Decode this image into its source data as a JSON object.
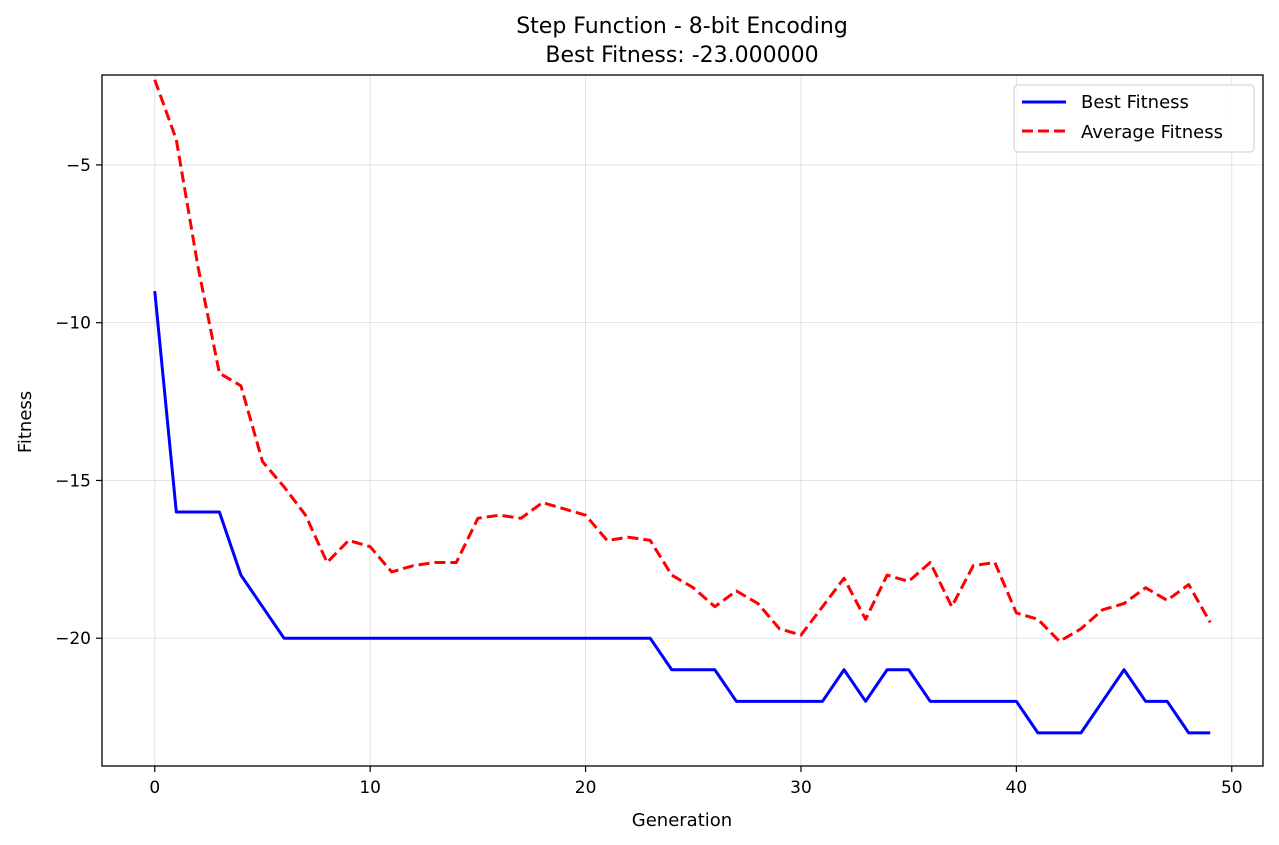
{
  "chart_data": {
    "type": "line",
    "title": "Step Function - 8-bit Encoding",
    "subtitle": "Best Fitness: -23.000000",
    "xlabel": "Generation",
    "ylabel": "Fitness",
    "xlim": [
      -2.45,
      51.45
    ],
    "ylim": [
      -24.05,
      -2.15
    ],
    "xticks": [
      0,
      10,
      20,
      30,
      40,
      50
    ],
    "yticks": [
      -5,
      -10,
      -15,
      -20
    ],
    "xtick_labels": [
      "0",
      "10",
      "20",
      "30",
      "40",
      "50"
    ],
    "ytick_labels": [
      "−5",
      "−10",
      "−15",
      "−20"
    ],
    "grid": true,
    "legend_position": "top-right",
    "x": [
      0,
      1,
      2,
      3,
      4,
      5,
      6,
      7,
      8,
      9,
      10,
      11,
      12,
      13,
      14,
      15,
      16,
      17,
      18,
      19,
      20,
      21,
      22,
      23,
      24,
      25,
      26,
      27,
      28,
      29,
      30,
      31,
      32,
      33,
      34,
      35,
      36,
      37,
      38,
      39,
      40,
      41,
      42,
      43,
      44,
      45,
      46,
      47,
      48,
      49
    ],
    "series": [
      {
        "name": "Best Fitness",
        "color": "#0000ff",
        "style": "solid",
        "values": [
          -9,
          -16,
          -16,
          -16,
          -18,
          -19,
          -20,
          -20,
          -20,
          -20,
          -20,
          -20,
          -20,
          -20,
          -20,
          -20,
          -20,
          -20,
          -20,
          -20,
          -20,
          -20,
          -20,
          -20,
          -21,
          -21,
          -21,
          -22,
          -22,
          -22,
          -22,
          -22,
          -21,
          -22,
          -21,
          -21,
          -22,
          -22,
          -22,
          -22,
          -22,
          -23,
          -23,
          -23,
          -22,
          -21,
          -22,
          -22,
          -23,
          -23
        ]
      },
      {
        "name": "Average Fitness",
        "color": "#ff0000",
        "style": "dashed",
        "values": [
          -2.3,
          -4.2,
          -8.2,
          -11.6,
          -12.0,
          -14.4,
          -15.2,
          -16.1,
          -17.6,
          -16.9,
          -17.1,
          -17.9,
          -17.7,
          -17.6,
          -17.6,
          -16.2,
          -16.1,
          -16.2,
          -15.7,
          -15.9,
          -16.1,
          -16.9,
          -16.8,
          -16.9,
          -18.0,
          -18.4,
          -19.0,
          -18.5,
          -18.9,
          -19.7,
          -19.9,
          -19.0,
          -18.1,
          -19.4,
          -18.0,
          -18.2,
          -17.6,
          -19.0,
          -17.7,
          -17.6,
          -19.2,
          -19.4,
          -20.1,
          -19.7,
          -19.1,
          -18.9,
          -18.4,
          -18.8,
          -18.3,
          -19.5
        ]
      }
    ]
  }
}
